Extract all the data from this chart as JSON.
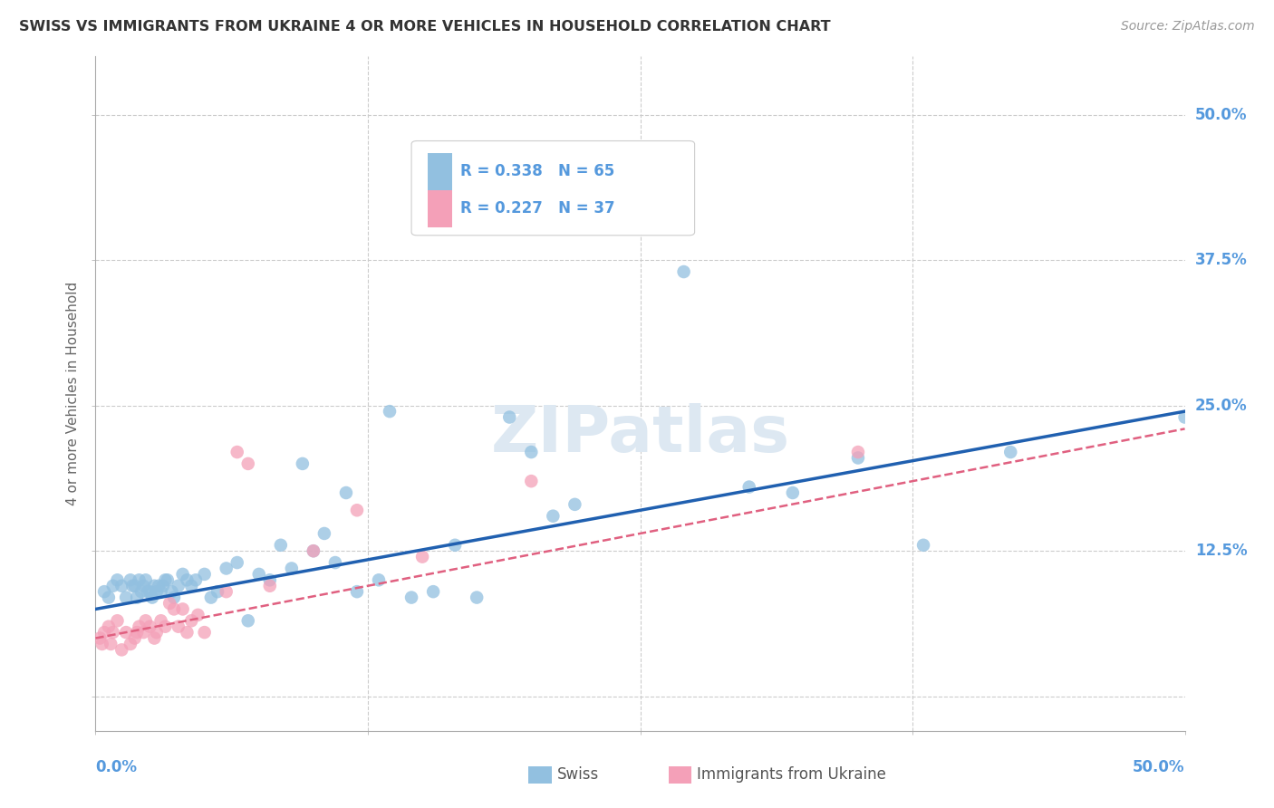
{
  "title": "SWISS VS IMMIGRANTS FROM UKRAINE 4 OR MORE VEHICLES IN HOUSEHOLD CORRELATION CHART",
  "source": "Source: ZipAtlas.com",
  "ylabel": "4 or more Vehicles in Household",
  "xrange": [
    0,
    0.5
  ],
  "yrange": [
    -0.03,
    0.55
  ],
  "ytick_vals": [
    0.0,
    0.125,
    0.25,
    0.375,
    0.5
  ],
  "ytick_labels": [
    "",
    "12.5%",
    "25.0%",
    "37.5%",
    "50.0%"
  ],
  "xtick_vals": [
    0.0,
    0.125,
    0.25,
    0.375,
    0.5
  ],
  "legend_swiss_text": "R = 0.338   N = 65",
  "legend_ukraine_text": "R = 0.227   N = 37",
  "swiss_color": "#92C0E0",
  "ukraine_color": "#F4A0B8",
  "swiss_line_color": "#2060B0",
  "ukraine_line_color": "#E06080",
  "background_color": "#FFFFFF",
  "grid_color": "#CCCCCC",
  "title_color": "#333333",
  "axis_label_color": "#5599DD",
  "source_color": "#999999",
  "watermark_color": "#DDE8F2",
  "swiss_x": [
    0.004,
    0.006,
    0.008,
    0.01,
    0.012,
    0.014,
    0.016,
    0.017,
    0.018,
    0.019,
    0.02,
    0.021,
    0.022,
    0.023,
    0.024,
    0.025,
    0.026,
    0.027,
    0.028,
    0.029,
    0.03,
    0.031,
    0.032,
    0.033,
    0.035,
    0.036,
    0.038,
    0.04,
    0.042,
    0.044,
    0.046,
    0.05,
    0.053,
    0.056,
    0.06,
    0.065,
    0.07,
    0.075,
    0.08,
    0.085,
    0.09,
    0.095,
    0.1,
    0.105,
    0.11,
    0.115,
    0.12,
    0.13,
    0.135,
    0.145,
    0.155,
    0.165,
    0.175,
    0.19,
    0.2,
    0.21,
    0.22,
    0.25,
    0.27,
    0.3,
    0.32,
    0.35,
    0.38,
    0.42,
    0.5
  ],
  "swiss_y": [
    0.09,
    0.085,
    0.095,
    0.1,
    0.095,
    0.085,
    0.1,
    0.095,
    0.095,
    0.085,
    0.1,
    0.09,
    0.095,
    0.1,
    0.09,
    0.09,
    0.085,
    0.095,
    0.09,
    0.095,
    0.09,
    0.095,
    0.1,
    0.1,
    0.09,
    0.085,
    0.095,
    0.105,
    0.1,
    0.095,
    0.1,
    0.105,
    0.085,
    0.09,
    0.11,
    0.115,
    0.065,
    0.105,
    0.1,
    0.13,
    0.11,
    0.2,
    0.125,
    0.14,
    0.115,
    0.175,
    0.09,
    0.1,
    0.245,
    0.085,
    0.09,
    0.13,
    0.085,
    0.24,
    0.21,
    0.155,
    0.165,
    0.42,
    0.365,
    0.18,
    0.175,
    0.205,
    0.13,
    0.21,
    0.24
  ],
  "ukraine_x": [
    0.002,
    0.003,
    0.004,
    0.006,
    0.007,
    0.008,
    0.01,
    0.012,
    0.014,
    0.016,
    0.018,
    0.019,
    0.02,
    0.022,
    0.023,
    0.025,
    0.027,
    0.028,
    0.03,
    0.032,
    0.034,
    0.036,
    0.038,
    0.04,
    0.042,
    0.044,
    0.047,
    0.05,
    0.06,
    0.065,
    0.07,
    0.08,
    0.1,
    0.12,
    0.15,
    0.2,
    0.35
  ],
  "ukraine_y": [
    0.05,
    0.045,
    0.055,
    0.06,
    0.045,
    0.055,
    0.065,
    0.04,
    0.055,
    0.045,
    0.05,
    0.055,
    0.06,
    0.055,
    0.065,
    0.06,
    0.05,
    0.055,
    0.065,
    0.06,
    0.08,
    0.075,
    0.06,
    0.075,
    0.055,
    0.065,
    0.07,
    0.055,
    0.09,
    0.21,
    0.2,
    0.095,
    0.125,
    0.16,
    0.12,
    0.185,
    0.21
  ],
  "swiss_line_x0": 0.0,
  "swiss_line_y0": 0.075,
  "swiss_line_x1": 0.5,
  "swiss_line_y1": 0.245,
  "ukraine_line_x0": 0.0,
  "ukraine_line_y0": 0.05,
  "ukraine_line_x1": 0.5,
  "ukraine_line_y1": 0.23
}
